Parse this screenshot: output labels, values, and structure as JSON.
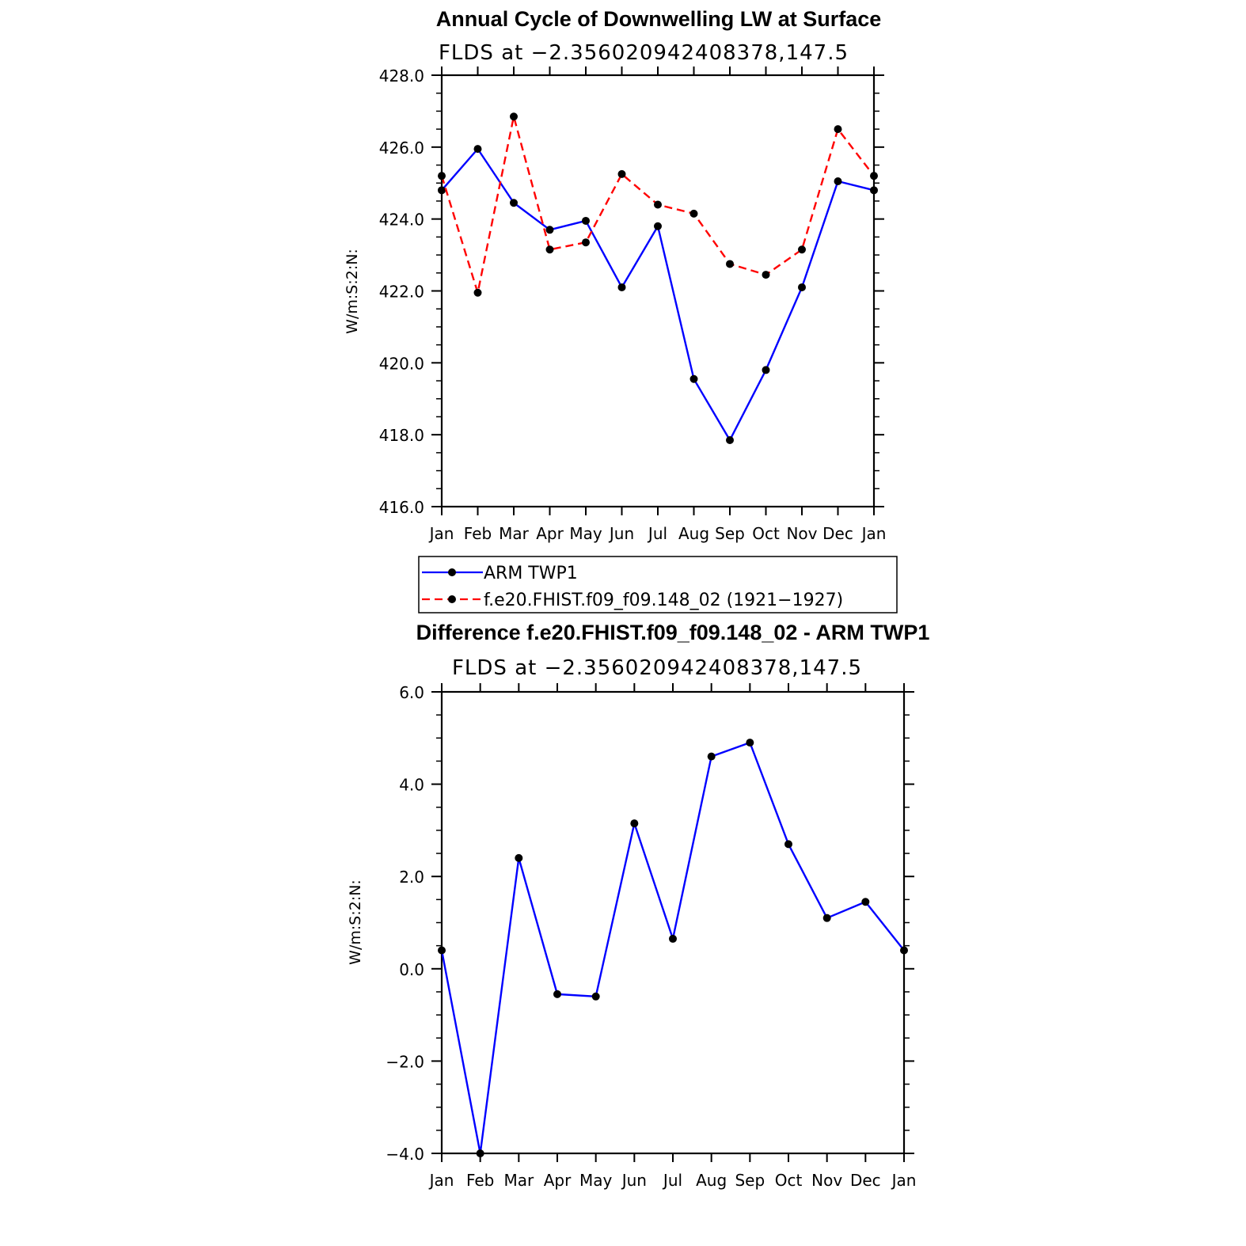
{
  "chart_data": [
    {
      "type": "line",
      "title": "Annual Cycle of Downwelling LW at Surface",
      "subtitle": "FLDS at −2.356020942408378,147.5",
      "ylabel": "W/m:S:2:N:",
      "xlabel": "",
      "categories": [
        "Jan",
        "Feb",
        "Mar",
        "Apr",
        "May",
        "Jun",
        "Jul",
        "Aug",
        "Sep",
        "Oct",
        "Nov",
        "Dec",
        "Jan"
      ],
      "ylim": [
        416.0,
        428.0
      ],
      "yticks": [
        "416.0",
        "418.0",
        "420.0",
        "422.0",
        "424.0",
        "426.0",
        "428.0"
      ],
      "series": [
        {
          "name": "ARM TWP1",
          "color": "#0000ff",
          "dash": "solid",
          "values": [
            424.8,
            425.95,
            424.45,
            423.7,
            423.95,
            422.1,
            423.8,
            419.55,
            417.85,
            419.8,
            422.1,
            425.05,
            424.8
          ]
        },
        {
          "name": "f.e20.FHIST.f09_f09.148_02 (1921−1927)",
          "color": "#ff0000",
          "dash": "dashed",
          "values": [
            425.2,
            421.95,
            426.85,
            423.15,
            423.35,
            425.25,
            424.4,
            424.15,
            422.75,
            422.45,
            423.15,
            426.5,
            425.2
          ]
        }
      ],
      "legend_position": "bottom"
    },
    {
      "type": "line",
      "title": "Difference f.e20.FHIST.f09_f09.148_02 - ARM TWP1",
      "subtitle": "FLDS at −2.356020942408378,147.5",
      "ylabel": "W/m:S:2:N:",
      "xlabel": "",
      "categories": [
        "Jan",
        "Feb",
        "Mar",
        "Apr",
        "May",
        "Jun",
        "Jul",
        "Aug",
        "Sep",
        "Oct",
        "Nov",
        "Dec",
        "Jan"
      ],
      "ylim": [
        -4.0,
        6.0
      ],
      "yticks": [
        "−4.0",
        "−2.0",
        "0.0",
        "2.0",
        "4.0",
        "6.0"
      ],
      "series": [
        {
          "color": "#0000ff",
          "dash": "solid",
          "values": [
            0.4,
            -4.0,
            2.4,
            -0.55,
            -0.6,
            3.15,
            0.65,
            4.6,
            4.9,
            2.7,
            1.1,
            1.45,
            0.4
          ]
        }
      ]
    }
  ]
}
